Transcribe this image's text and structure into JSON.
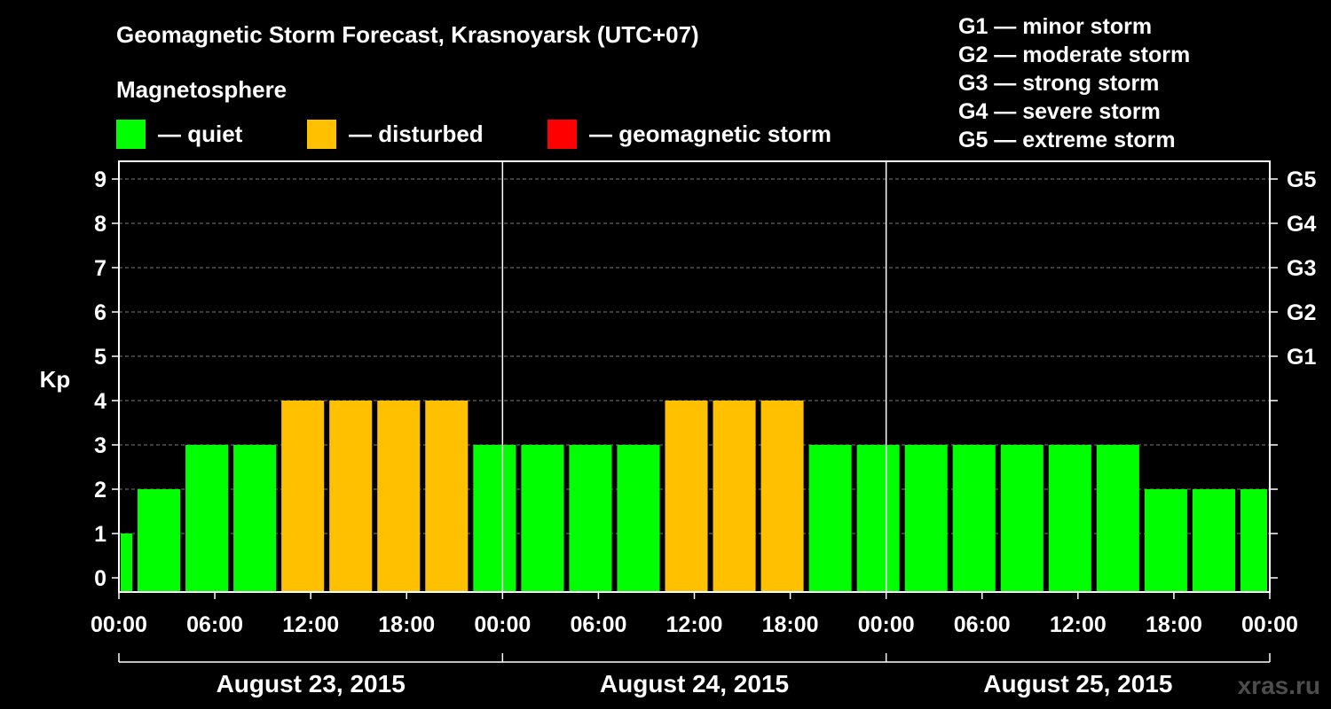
{
  "title": "Geomagnetic Storm Forecast, Krasnoyarsk (UTC+07)",
  "subtitle": "Magnetosphere",
  "legend": [
    {
      "label": "— quiet",
      "color": "#00ff00"
    },
    {
      "label": "— disturbed",
      "color": "#ffc000"
    },
    {
      "label": "— geomagnetic storm",
      "color": "#ff0000"
    }
  ],
  "storm_scale": [
    "G1 — minor storm",
    "G2 — moderate storm",
    "G3 — strong storm",
    "G4 — severe storm",
    "G5 — extreme storm"
  ],
  "watermark": "xras.ru",
  "chart_data": {
    "type": "bar",
    "ylabel": "Kp",
    "ylim": [
      0,
      9
    ],
    "y_ticks": [
      "0",
      "1",
      "2",
      "3",
      "4",
      "5",
      "6",
      "7",
      "8",
      "9"
    ],
    "right_ticks": [
      {
        "kp": 5,
        "label": "G1"
      },
      {
        "kp": 6,
        "label": "G2"
      },
      {
        "kp": 7,
        "label": "G3"
      },
      {
        "kp": 8,
        "label": "G4"
      },
      {
        "kp": 9,
        "label": "G5"
      }
    ],
    "x_tick_labels": [
      "00:00",
      "06:00",
      "12:00",
      "18:00",
      "00:00",
      "06:00",
      "12:00",
      "18:00",
      "00:00",
      "06:00",
      "12:00",
      "18:00",
      "00:00"
    ],
    "days": [
      "August 23, 2015",
      "August 24, 2015",
      "August 25, 2015"
    ],
    "grid": "dashed horizontal",
    "values": [
      1,
      2,
      3,
      3,
      4,
      4,
      4,
      4,
      3,
      3,
      3,
      3,
      4,
      4,
      4,
      3,
      3,
      3,
      3,
      3,
      3,
      3,
      2,
      2,
      2
    ],
    "first_bar_hours": 1,
    "bar_interval_hours": 3,
    "colors": {
      "quiet": "#00ff00",
      "disturbed": "#ffc000",
      "storm": "#ff0000"
    }
  }
}
